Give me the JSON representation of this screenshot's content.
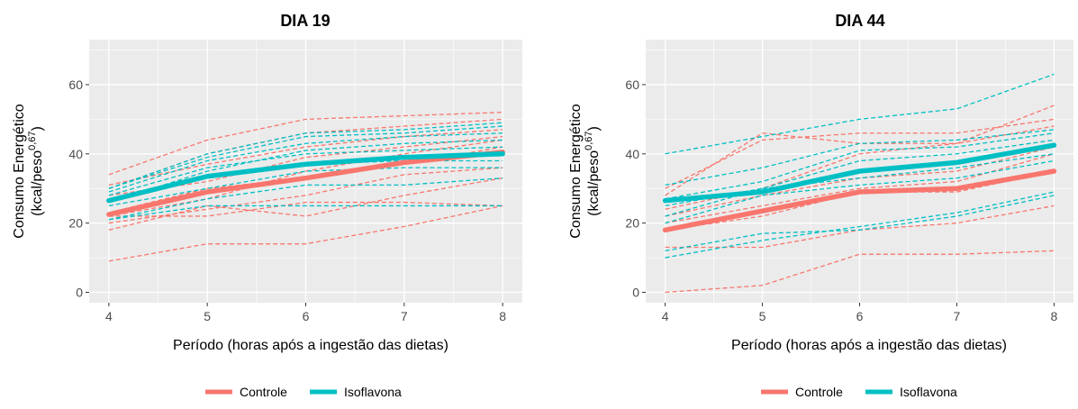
{
  "chart_data": [
    {
      "type": "line",
      "title": "DIA 19",
      "xlabel": "Período (horas após a ingestão das dietas)",
      "ylabel": "Consumo Energético",
      "ylabel_units": {
        "base": "(kcal/peso",
        "superscript": "0,67",
        "close": ")"
      },
      "x": [
        4,
        5,
        6,
        7,
        8
      ],
      "xlim": [
        3.8,
        8.2
      ],
      "ylim": [
        -3,
        73
      ],
      "yticks": [
        0,
        20,
        40,
        60
      ],
      "grid": true,
      "legend": {
        "position": "bottom",
        "entries": [
          "Controle",
          "Isoflavona"
        ]
      },
      "colors": {
        "Controle": "#f8766d",
        "Isoflavona": "#00bfc4"
      },
      "series": [
        {
          "name": "Controle",
          "style": "mean",
          "values": [
            22.5,
            29,
            33,
            37.5,
            40.5
          ]
        },
        {
          "name": "Isoflavona",
          "style": "mean",
          "values": [
            26.5,
            33.5,
            37,
            39,
            40
          ]
        }
      ],
      "individual_lines": [
        {
          "group": "Controle",
          "values": [
            9,
            14,
            14,
            19,
            25
          ]
        },
        {
          "group": "Controle",
          "values": [
            18,
            25,
            22,
            28,
            33
          ]
        },
        {
          "group": "Controle",
          "values": [
            22,
            22,
            26,
            26,
            25
          ]
        },
        {
          "group": "Controle",
          "values": [
            20,
            24,
            28,
            34,
            36
          ]
        },
        {
          "group": "Controle",
          "values": [
            23,
            30,
            33,
            37,
            42
          ]
        },
        {
          "group": "Controle",
          "values": [
            22,
            27,
            35,
            40,
            44
          ]
        },
        {
          "group": "Controle",
          "values": [
            28,
            32,
            39,
            42,
            45
          ]
        },
        {
          "group": "Controle",
          "values": [
            31,
            37,
            42,
            45,
            47
          ]
        },
        {
          "group": "Controle",
          "values": [
            30,
            40,
            46,
            48,
            50
          ]
        },
        {
          "group": "Controle",
          "values": [
            34,
            44,
            50,
            51,
            52
          ]
        },
        {
          "group": "Isoflavona",
          "values": [
            21,
            25,
            25,
            25,
            25
          ]
        },
        {
          "group": "Isoflavona",
          "values": [
            21,
            27,
            31,
            31,
            33
          ]
        },
        {
          "group": "Isoflavona",
          "values": [
            25,
            30,
            35,
            36,
            36
          ]
        },
        {
          "group": "Isoflavona",
          "values": [
            27,
            33,
            37,
            38,
            38
          ]
        },
        {
          "group": "Isoflavona",
          "values": [
            28,
            36,
            40,
            41,
            42
          ]
        },
        {
          "group": "Isoflavona",
          "values": [
            29,
            38,
            43,
            45,
            46
          ]
        },
        {
          "group": "Isoflavona",
          "values": [
            30,
            39,
            45,
            46,
            48
          ]
        },
        {
          "group": "Isoflavona",
          "values": [
            30,
            40,
            46,
            47,
            49
          ]
        },
        {
          "group": "Isoflavona",
          "values": [
            26,
            35,
            41,
            43,
            44
          ]
        }
      ]
    },
    {
      "type": "line",
      "title": "DIA 44",
      "xlabel": "Período (horas após a ingestão das dietas)",
      "ylabel": "Consumo Energético",
      "ylabel_units": {
        "base": "(kcal/peso",
        "superscript": "0,67",
        "close": ")"
      },
      "x": [
        4,
        5,
        6,
        7,
        8
      ],
      "xlim": [
        3.8,
        8.2
      ],
      "ylim": [
        -3,
        73
      ],
      "yticks": [
        0,
        20,
        40,
        60
      ],
      "grid": true,
      "legend": {
        "position": "bottom",
        "entries": [
          "Controle",
          "Isoflavona"
        ]
      },
      "colors": {
        "Controle": "#f8766d",
        "Isoflavona": "#00bfc4"
      },
      "series": [
        {
          "name": "Controle",
          "style": "mean",
          "values": [
            18,
            23.5,
            29,
            30,
            35
          ]
        },
        {
          "name": "Isoflavona",
          "style": "mean",
          "values": [
            26.5,
            29,
            35,
            37.5,
            42.5
          ]
        }
      ],
      "individual_lines": [
        {
          "group": "Controle",
          "values": [
            0,
            2,
            11,
            11,
            12
          ]
        },
        {
          "group": "Controle",
          "values": [
            13,
            13,
            18,
            20,
            25
          ]
        },
        {
          "group": "Controle",
          "values": [
            18,
            22,
            29,
            29,
            35
          ]
        },
        {
          "group": "Controle",
          "values": [
            20,
            25,
            30,
            32,
            40
          ]
        },
        {
          "group": "Controle",
          "values": [
            22,
            28,
            33,
            35,
            42
          ]
        },
        {
          "group": "Controle",
          "values": [
            24,
            30,
            40,
            43,
            48
          ]
        },
        {
          "group": "Controle",
          "values": [
            28,
            46,
            43,
            43,
            54
          ]
        },
        {
          "group": "Controle",
          "values": [
            30,
            44,
            46,
            46,
            50
          ]
        },
        {
          "group": "Isoflavona",
          "values": [
            10,
            15,
            19,
            23,
            29
          ]
        },
        {
          "group": "Isoflavona",
          "values": [
            12,
            17,
            18,
            22,
            28
          ]
        },
        {
          "group": "Isoflavona",
          "values": [
            20,
            28,
            31,
            33,
            38
          ]
        },
        {
          "group": "Isoflavona",
          "values": [
            22,
            30,
            33,
            36,
            40
          ]
        },
        {
          "group": "Isoflavona",
          "values": [
            25,
            30,
            38,
            40,
            44
          ]
        },
        {
          "group": "Isoflavona",
          "values": [
            27,
            32,
            41,
            42,
            46
          ]
        },
        {
          "group": "Isoflavona",
          "values": [
            31,
            36,
            43,
            44,
            47
          ]
        },
        {
          "group": "Isoflavona",
          "values": [
            40,
            45,
            50,
            53,
            63
          ]
        }
      ]
    }
  ]
}
